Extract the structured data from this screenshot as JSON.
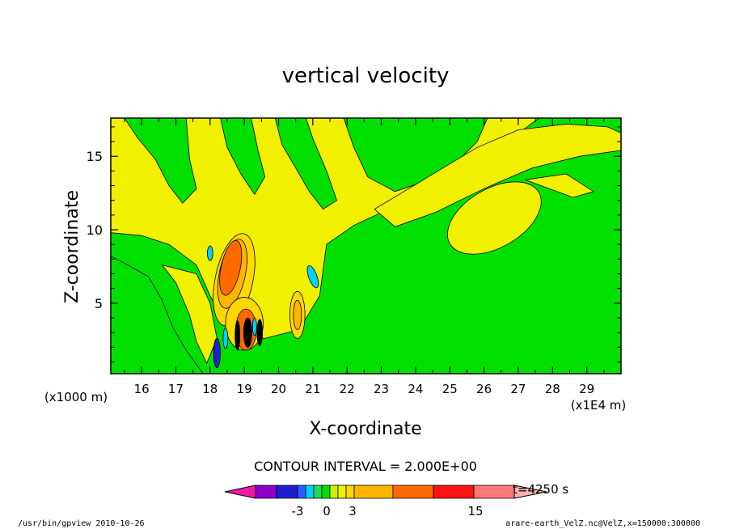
{
  "chart_data": {
    "type": "heatmap",
    "title": "vertical velocity",
    "xlabel": "X-coordinate",
    "ylabel": "Z-coordinate",
    "x_unit": "(x1E4 m)",
    "y_unit": "(x1000 m)",
    "xlim": [
      15.1,
      30.0
    ],
    "ylim": [
      0.2,
      17.6
    ],
    "x_ticks": [
      "16",
      "17",
      "18",
      "19",
      "20",
      "21",
      "22",
      "23",
      "24",
      "25",
      "26",
      "27",
      "28",
      "29"
    ],
    "y_ticks": [
      "5",
      "10",
      "15"
    ],
    "contour_interval": "CONTOUR INTERVAL = 2.000E+00",
    "time_label": "t=4250 s",
    "colorbar": {
      "tick_labels": [
        "-3",
        "0",
        "3",
        "15"
      ],
      "colors": [
        "#ee1aa0",
        "#8c00c8",
        "#1f1fd0",
        "#2a5cff",
        "#00d2ff",
        "#22d85a",
        "#00e000",
        "#c8f200",
        "#f0f000",
        "#ffd800",
        "#ffb400",
        "#ff6a00",
        "#ff1414",
        "#ff7878",
        "#ffb4b4"
      ]
    },
    "features": [
      {
        "x": 18.6,
        "z": 7.0,
        "kind": "updraft",
        "level": 9
      },
      {
        "x": 19.0,
        "z": 3.0,
        "kind": "updraft",
        "level": 13
      },
      {
        "x": 18.2,
        "z": 1.5,
        "kind": "downdraft",
        "level": -3
      },
      {
        "x": 20.6,
        "z": 4.2,
        "kind": "updraft",
        "level": 5
      },
      {
        "x": 21.0,
        "z": 7.0,
        "kind": "downdraft",
        "level": -1
      },
      {
        "x": 26.0,
        "z": 10.5,
        "kind": "updraft",
        "level": 1
      }
    ],
    "grid": false
  },
  "footer": {
    "left": "/usr/bin/gpview  2010-10-26",
    "right": "arare-earth_VelZ.nc@VelZ,x=150000:300000"
  }
}
